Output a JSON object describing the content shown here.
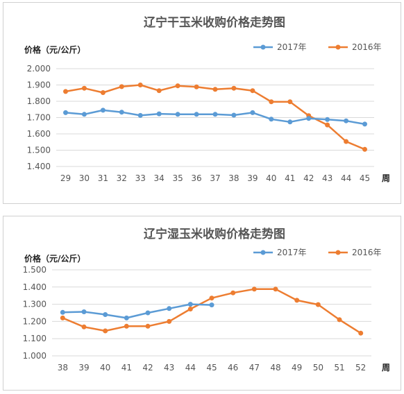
{
  "chart_data": [
    {
      "type": "line",
      "title": "辽宁干玉米收购价格走势图",
      "ylabel": "价格（元/公斤）",
      "xlabel": "周",
      "x": [
        "29",
        "30",
        "31",
        "32",
        "33",
        "34",
        "35",
        "36",
        "37",
        "38",
        "39",
        "40",
        "41",
        "42",
        "43",
        "44",
        "45"
      ],
      "ylim": [
        1.4,
        2.0
      ],
      "yticks": [
        "2.000",
        "1.900",
        "1.800",
        "1.700",
        "1.600",
        "1.500",
        "1.400"
      ],
      "grid": true,
      "legend": "top-right",
      "series": [
        {
          "name": "2017年",
          "color": "#5b9bd5",
          "values": [
            1.73,
            1.72,
            1.745,
            1.733,
            1.713,
            1.723,
            1.72,
            1.72,
            1.72,
            1.715,
            1.73,
            1.69,
            1.673,
            1.695,
            1.688,
            1.68,
            1.66
          ]
        },
        {
          "name": "2016年",
          "color": "#ed7d31",
          "values": [
            1.86,
            1.88,
            1.853,
            1.89,
            1.9,
            1.865,
            1.895,
            1.888,
            1.873,
            1.88,
            1.865,
            1.797,
            1.797,
            1.712,
            1.655,
            1.553,
            1.505
          ]
        }
      ]
    },
    {
      "type": "line",
      "title": "辽宁湿玉米收购价格走势图",
      "ylabel": "价格（元/公斤）",
      "xlabel": "周",
      "x": [
        "38",
        "39",
        "40",
        "41",
        "42",
        "43",
        "44",
        "45",
        "46",
        "47",
        "48",
        "49",
        "50",
        "51",
        "52"
      ],
      "ylim": [
        1.0,
        1.5
      ],
      "yticks": [
        "1.500",
        "1.400",
        "1.300",
        "1.200",
        "1.100",
        "1.000"
      ],
      "grid": true,
      "legend": "top-right",
      "series": [
        {
          "name": "2017年",
          "color": "#5b9bd5",
          "values": [
            1.253,
            1.256,
            1.24,
            1.22,
            1.25,
            1.275,
            1.3,
            1.296,
            null,
            null,
            null,
            null,
            null,
            null,
            null
          ]
        },
        {
          "name": "2016年",
          "color": "#ed7d31",
          "values": [
            1.22,
            1.168,
            1.145,
            1.172,
            1.172,
            1.2,
            1.272,
            1.336,
            1.366,
            1.388,
            1.388,
            1.323,
            1.298,
            1.21,
            1.132
          ]
        }
      ]
    }
  ]
}
